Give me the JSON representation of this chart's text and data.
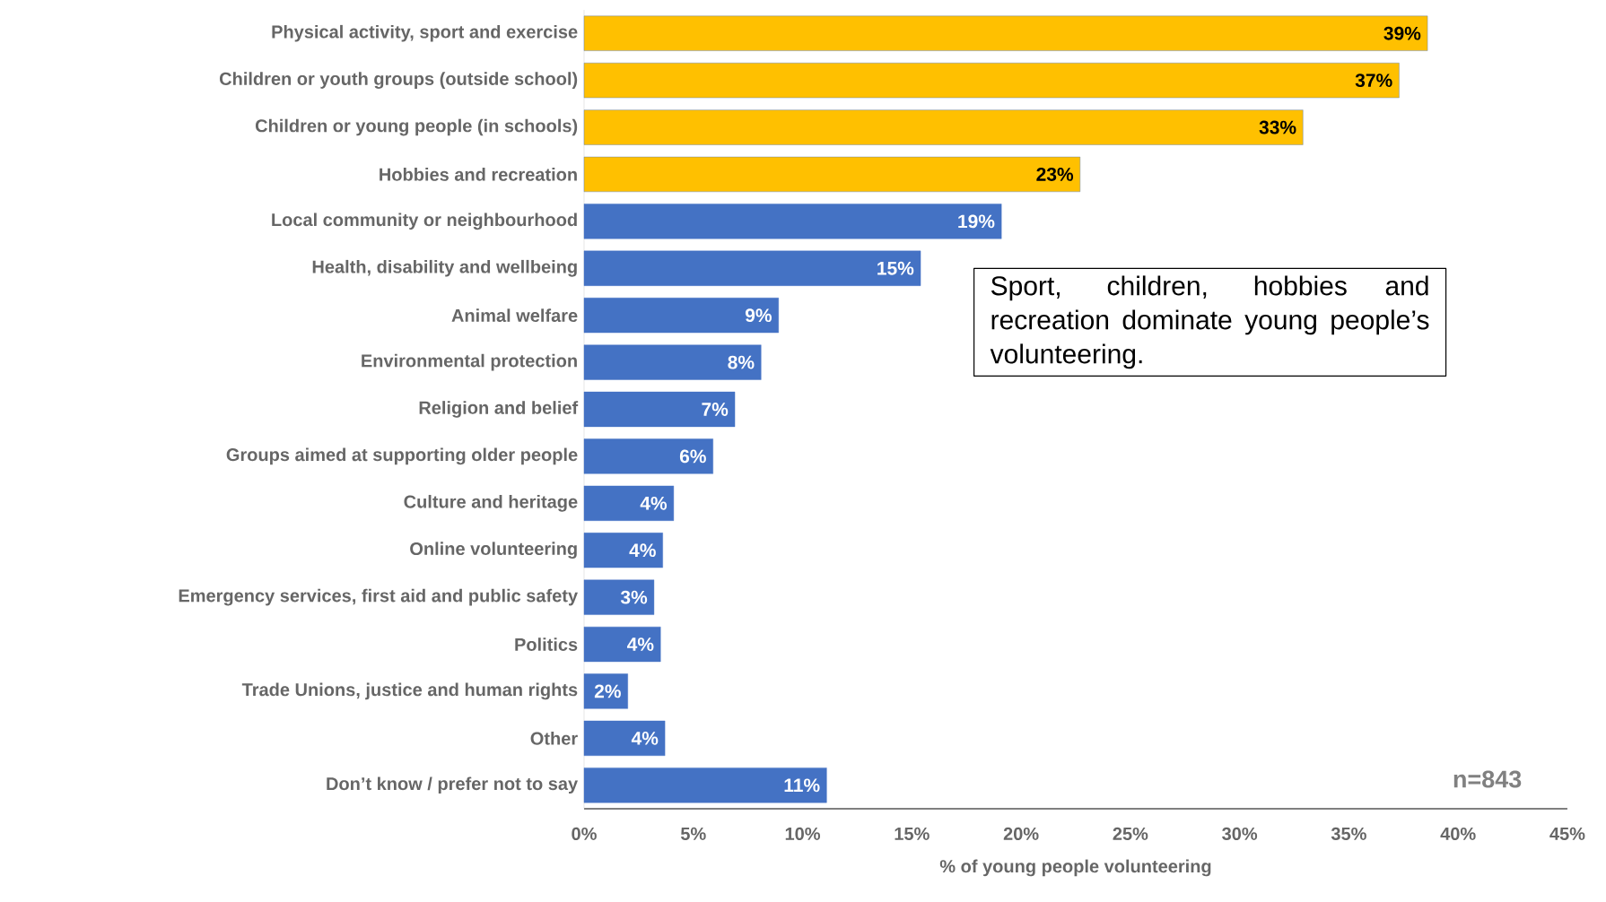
{
  "chart_data": {
    "type": "bar",
    "orientation": "horizontal",
    "xlabel": "% of young people volunteering",
    "categories": [
      "Physical activity, sport and exercise",
      "Children or youth groups (outside school)",
      "Children or young people (in schools)",
      "Hobbies and recreation",
      "Local community or neighbourhood",
      "Health, disability and wellbeing",
      "Animal welfare",
      "Environmental protection",
      "Religion and belief",
      "Groups aimed at supporting older people",
      "Culture and heritage",
      "Online volunteering",
      "Emergency services, first aid and public safety",
      "Politics",
      "Trade Unions, justice and human rights",
      "Other",
      "Don’t know / prefer not to say"
    ],
    "values": [
      38.6,
      37.3,
      32.9,
      22.7,
      19.1,
      15.4,
      8.9,
      8.1,
      6.9,
      5.9,
      4.1,
      3.6,
      3.2,
      3.5,
      2.0,
      3.7,
      11.1
    ],
    "value_labels": [
      "39%",
      "37%",
      "33%",
      "23%",
      "19%",
      "15%",
      "9%",
      "8%",
      "7%",
      "6%",
      "4%",
      "4%",
      "3%",
      "4%",
      "2%",
      "4%",
      "11%"
    ],
    "colors": [
      "#ffc000",
      "#ffc000",
      "#ffc000",
      "#ffc000",
      "#4472c4",
      "#4472c4",
      "#4472c4",
      "#4472c4",
      "#4472c4",
      "#4472c4",
      "#4472c4",
      "#4472c4",
      "#4472c4",
      "#4472c4",
      "#4472c4",
      "#4472c4",
      "#4472c4"
    ],
    "xlim": [
      0,
      45
    ],
    "xticks": [
      {
        "value": 0,
        "label": "0%"
      },
      {
        "value": 5,
        "label": "5%"
      },
      {
        "value": 10,
        "label": "10%"
      },
      {
        "value": 15,
        "label": "15%"
      },
      {
        "value": 20,
        "label": "20%"
      },
      {
        "value": 25,
        "label": "25%"
      },
      {
        "value": 30,
        "label": "30%"
      },
      {
        "value": 35,
        "label": "35%"
      },
      {
        "value": 40,
        "label": "40%"
      },
      {
        "value": 45,
        "label": "45%"
      }
    ],
    "annotations": [
      "Sport, children, hobbies and recreation dominate young people’s volunteering.",
      "n=843"
    ]
  }
}
